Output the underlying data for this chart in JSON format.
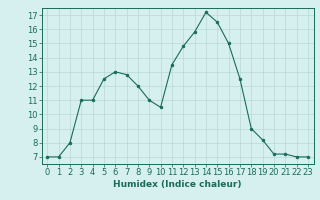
{
  "x": [
    0,
    1,
    2,
    3,
    4,
    5,
    6,
    7,
    8,
    9,
    10,
    11,
    12,
    13,
    14,
    15,
    16,
    17,
    18,
    19,
    20,
    21,
    22,
    23
  ],
  "y": [
    7,
    7,
    8,
    11,
    11,
    12.5,
    13,
    12.8,
    12,
    11,
    10.5,
    13.5,
    14.8,
    15.8,
    17.2,
    16.5,
    15,
    12.5,
    9,
    8.2,
    7.2,
    7.2,
    7,
    7
  ],
  "line_color": "#1a6b5a",
  "marker": "o",
  "marker_size": 2,
  "bg_color": "#d6f0f0",
  "grid_color": "#b8d8d8",
  "xlabel": "Humidex (Indice chaleur)",
  "xlim": [
    -0.5,
    23.5
  ],
  "ylim": [
    6.5,
    17.5
  ],
  "yticks": [
    7,
    8,
    9,
    10,
    11,
    12,
    13,
    14,
    15,
    16,
    17
  ],
  "xticks": [
    0,
    1,
    2,
    3,
    4,
    5,
    6,
    7,
    8,
    9,
    10,
    11,
    12,
    13,
    14,
    15,
    16,
    17,
    18,
    19,
    20,
    21,
    22,
    23
  ],
  "label_fontsize": 6.5,
  "tick_fontsize": 6
}
